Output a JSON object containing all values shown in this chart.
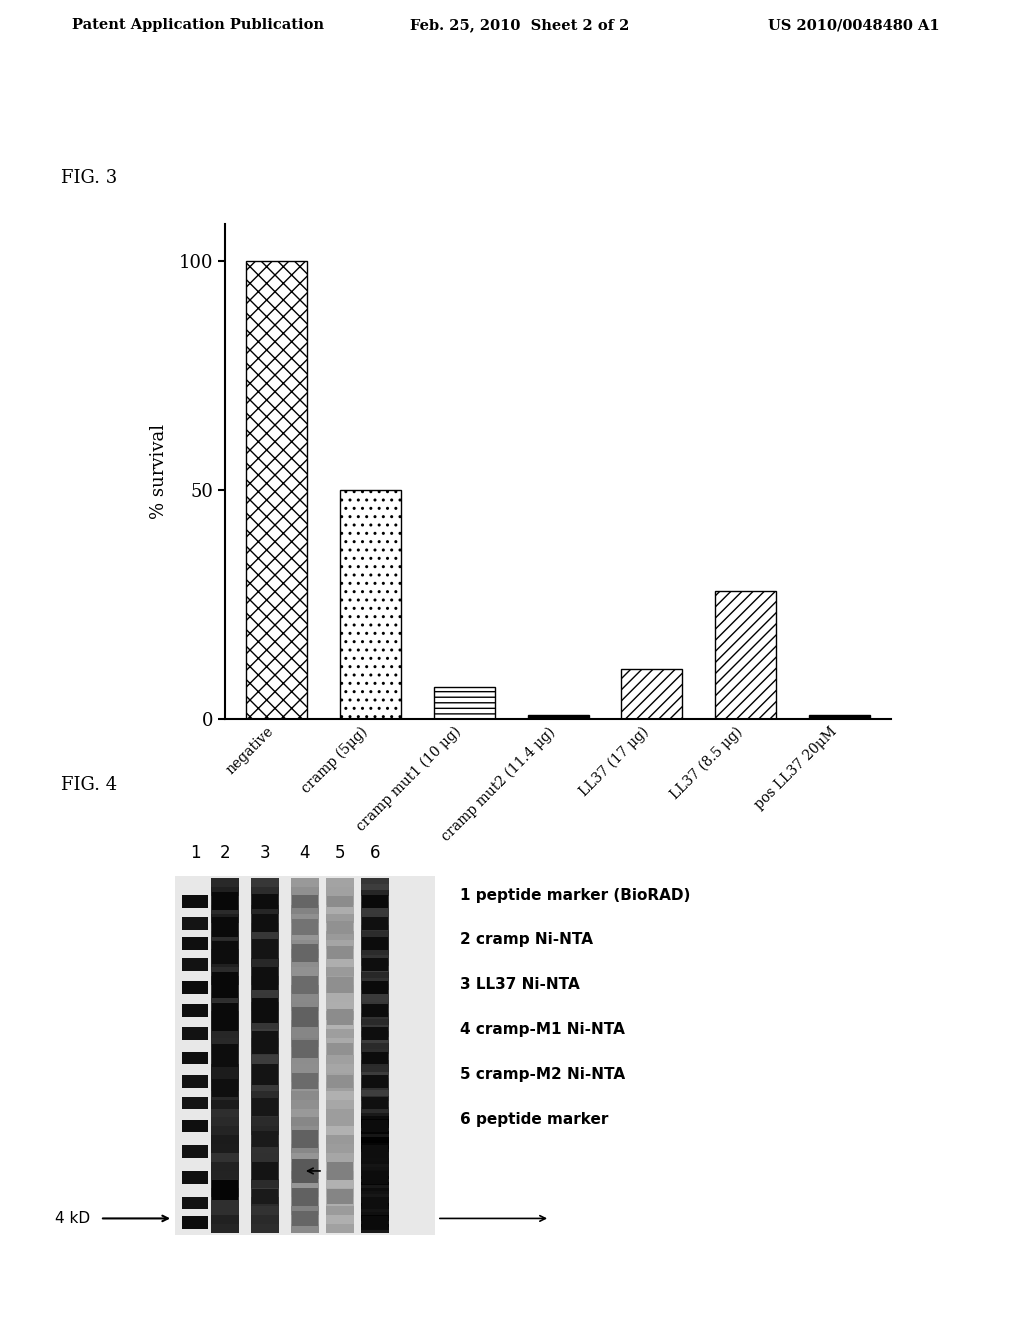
{
  "header_left": "Patent Application Publication",
  "header_center": "Feb. 25, 2010  Sheet 2 of 2",
  "header_right": "US 2010/0048480 A1",
  "fig3_label": "FIG. 3",
  "fig4_label": "FIG. 4",
  "bar_categories": [
    "negative",
    "cramp (5μg)",
    "cramp mut1 (10 μg)",
    "cramp mut2 (11.4 μg)",
    "LL37 (17 μg)",
    "LL37 (8.5 μg)",
    "pos LL37 20μM"
  ],
  "bar_values": [
    100,
    50,
    7,
    1,
    11,
    28,
    1
  ],
  "ylabel": "% survival",
  "yticks": [
    0,
    50,
    100
  ],
  "ylim": [
    0,
    108
  ],
  "fig4_legend": [
    "1 peptide marker (BioRAD)",
    "2 cramp Ni-NTA",
    "3 LL37 Ni-NTA",
    "4 cramp-M1 Ni-NTA",
    "5 cramp-M2 Ni-NTA",
    "6 peptide marker"
  ],
  "fig4_label_4kd": "4 kD",
  "background_color": "#ffffff"
}
